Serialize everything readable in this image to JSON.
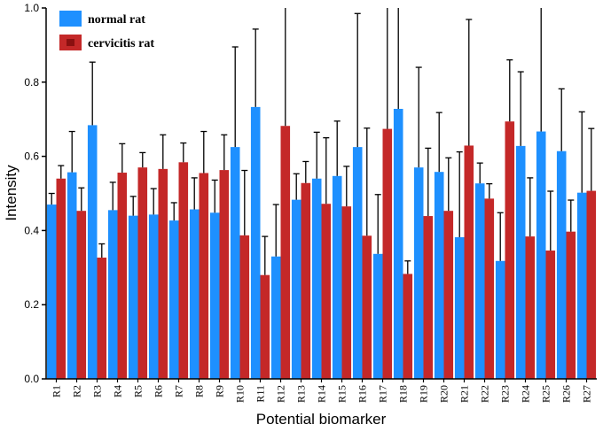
{
  "chart_data": {
    "type": "bar",
    "title": "",
    "xlabel": "Potential biomarker",
    "ylabel": "Intensity",
    "ylim": [
      0,
      1.0
    ],
    "yticks": [
      "0.0",
      "0.2",
      "0.4",
      "0.6",
      "0.8",
      "1.0"
    ],
    "legend_position": "top-left",
    "categories": [
      "R1",
      "R2",
      "R3",
      "R4",
      "R5",
      "R6",
      "R7",
      "R8",
      "R9",
      "R10",
      "R11",
      "R12",
      "R13",
      "R14",
      "R15",
      "R16",
      "R17",
      "R18",
      "R19",
      "R20",
      "R21",
      "R22",
      "R23",
      "R24",
      "R25",
      "R26",
      "R27"
    ],
    "series": [
      {
        "name": "normal rat",
        "color": "#1e90ff",
        "values": [
          0.47,
          0.557,
          0.684,
          0.455,
          0.44,
          0.443,
          0.427,
          0.457,
          0.448,
          0.625,
          0.733,
          0.33,
          0.483,
          0.54,
          0.547,
          0.625,
          0.337,
          0.728,
          0.57,
          0.558,
          0.382,
          0.527,
          0.318,
          0.628,
          0.667,
          0.614,
          0.502
        ],
        "errors": [
          0.03,
          0.11,
          0.17,
          0.075,
          0.052,
          0.07,
          0.048,
          0.085,
          0.088,
          0.27,
          0.21,
          0.14,
          0.07,
          0.125,
          0.148,
          0.36,
          0.16,
          0.33,
          0.27,
          0.16,
          0.23,
          0.055,
          0.13,
          0.2,
          0.36,
          0.168,
          0.218
        ]
      },
      {
        "name": "cervicitis rat",
        "color": "#c42828",
        "values": [
          0.54,
          0.453,
          0.327,
          0.556,
          0.57,
          0.566,
          0.584,
          0.555,
          0.563,
          0.387,
          0.28,
          0.682,
          0.528,
          0.472,
          0.465,
          0.386,
          0.674,
          0.283,
          0.439,
          0.453,
          0.629,
          0.486,
          0.694,
          0.384,
          0.346,
          0.397,
          0.507
        ],
        "errors": [
          0.035,
          0.062,
          0.037,
          0.078,
          0.04,
          0.092,
          0.052,
          0.112,
          0.095,
          0.175,
          0.104,
          0.35,
          0.058,
          0.178,
          0.108,
          0.29,
          0.35,
          0.035,
          0.183,
          0.143,
          0.34,
          0.04,
          0.166,
          0.158,
          0.16,
          0.085,
          0.168
        ]
      }
    ]
  }
}
